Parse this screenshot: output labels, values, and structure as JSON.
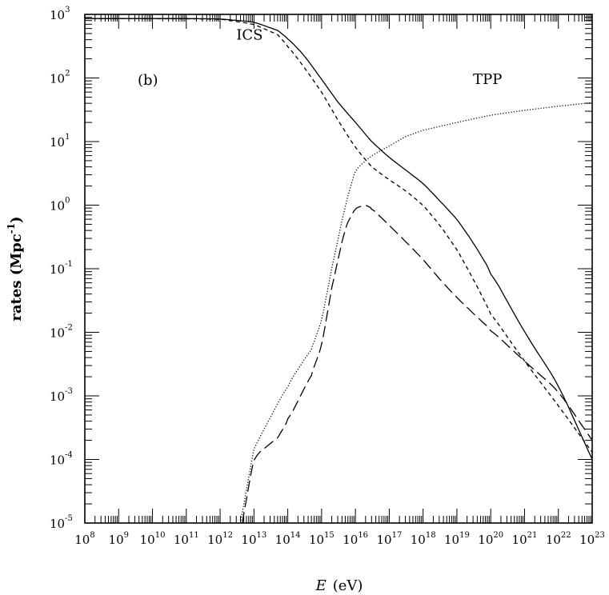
{
  "chart_data": {
    "type": "line",
    "panel_label": "(b)",
    "xlabel_italic": "E",
    "xlabel_unit": "(eV)",
    "ylabel": "rates (Mpc",
    "ylabel_sup": "-1",
    "ylabel_close": ")",
    "x_scale": "log",
    "y_scale": "log",
    "xlim": [
      100000000.0,
      1e+23
    ],
    "ylim": [
      1e-05,
      1000.0
    ],
    "x_ticks": [
      {
        "base": "10",
        "exp": "8"
      },
      {
        "base": "10",
        "exp": "9"
      },
      {
        "base": "10",
        "exp": "10"
      },
      {
        "base": "10",
        "exp": "11"
      },
      {
        "base": "10",
        "exp": "12"
      },
      {
        "base": "10",
        "exp": "13"
      },
      {
        "base": "10",
        "exp": "14"
      },
      {
        "base": "10",
        "exp": "15"
      },
      {
        "base": "10",
        "exp": "16"
      },
      {
        "base": "10",
        "exp": "17"
      },
      {
        "base": "10",
        "exp": "18"
      },
      {
        "base": "10",
        "exp": "19"
      },
      {
        "base": "10",
        "exp": "20"
      },
      {
        "base": "10",
        "exp": "21"
      },
      {
        "base": "10",
        "exp": "22"
      },
      {
        "base": "10",
        "exp": "23"
      }
    ],
    "y_ticks": [
      {
        "base": "10",
        "exp": "-5"
      },
      {
        "base": "10",
        "exp": "-4"
      },
      {
        "base": "10",
        "exp": "-3"
      },
      {
        "base": "10",
        "exp": "-2"
      },
      {
        "base": "10",
        "exp": "-1"
      },
      {
        "base": "10",
        "exp": "0"
      },
      {
        "base": "10",
        "exp": "1"
      },
      {
        "base": "10",
        "exp": "2"
      },
      {
        "base": "10",
        "exp": "3"
      }
    ],
    "annotations": [
      {
        "text": "ICS",
        "x": 3000000000000.0,
        "y": 400
      },
      {
        "text": "TPP",
        "x": 3e+19,
        "y": 80
      }
    ],
    "series": [
      {
        "style": "solid",
        "x": [
          100000000.0,
          100000000000.0,
          1000000000000.0,
          10000000000000.0,
          50000000000000.0,
          100000000000000.0,
          300000000000000.0,
          1000000000000000.0,
          3000000000000000.0,
          1e+16,
          3e+16,
          1e+17,
          3e+17,
          1e+18,
          3e+18,
          1e+19,
          3e+19,
          1e+20,
          1e+21,
          1e+22,
          1e+23
        ],
        "y": [
          860,
          860,
          850,
          760,
          560,
          420,
          230,
          95,
          42,
          20,
          10,
          5.6,
          3.6,
          2.2,
          1.2,
          0.6,
          0.26,
          0.09,
          0.01,
          0.0015,
          0.0001
        ]
      },
      {
        "style": "short-dash",
        "x": [
          100000000.0,
          1000000000000.0,
          10000000000000.0,
          50000000000000.0,
          100000000000000.0,
          300000000000000.0,
          1000000000000000.0,
          3000000000000000.0,
          1e+16,
          3e+16,
          1e+17,
          3e+17,
          1e+18,
          3e+18,
          1e+19,
          3e+19,
          1e+20,
          1e+21,
          1e+22,
          1e+23
        ],
        "y": [
          860,
          850,
          700,
          480,
          320,
          150,
          60,
          22,
          8,
          4,
          2.5,
          1.7,
          1,
          0.5,
          0.2,
          0.07,
          0.02,
          0.0035,
          0.0007,
          0.00013
        ]
      },
      {
        "style": "dotted",
        "x": [
          4000000000000.0,
          10000000000000.0,
          100000000000000.0,
          500000000000000.0,
          1000000000000000.0,
          2000000000000000.0,
          5000000000000000.0,
          1e+16,
          3e+16,
          1e+17,
          3e+17,
          1e+18,
          1e+19,
          1e+20,
          1e+21,
          1e+22,
          1e+23
        ],
        "y": [
          1e-05,
          0.00015,
          0.0015,
          0.0055,
          0.015,
          0.1,
          1,
          3.6,
          6,
          8.5,
          12,
          15,
          20,
          26,
          31,
          36,
          41
        ]
      },
      {
        "style": "long-dash",
        "x": [
          4500000000000.0,
          10000000000000.0,
          50000000000000.0,
          100000000000000.0,
          500000000000000.0,
          1000000000000000.0,
          2000000000000000.0,
          5000000000000000.0,
          1e+16,
          2e+16,
          3e+16,
          1e+17,
          3e+17,
          1e+18,
          3e+18,
          1e+19,
          3e+19,
          1e+20,
          1e+21,
          1e+22,
          1e+23
        ],
        "y": [
          1e-05,
          0.00011,
          0.00022,
          0.0004,
          0.0022,
          0.006,
          0.05,
          0.45,
          0.9,
          1,
          0.9,
          0.48,
          0.27,
          0.14,
          0.07,
          0.035,
          0.02,
          0.011,
          0.0035,
          0.0012,
          0.0002
        ]
      }
    ]
  }
}
